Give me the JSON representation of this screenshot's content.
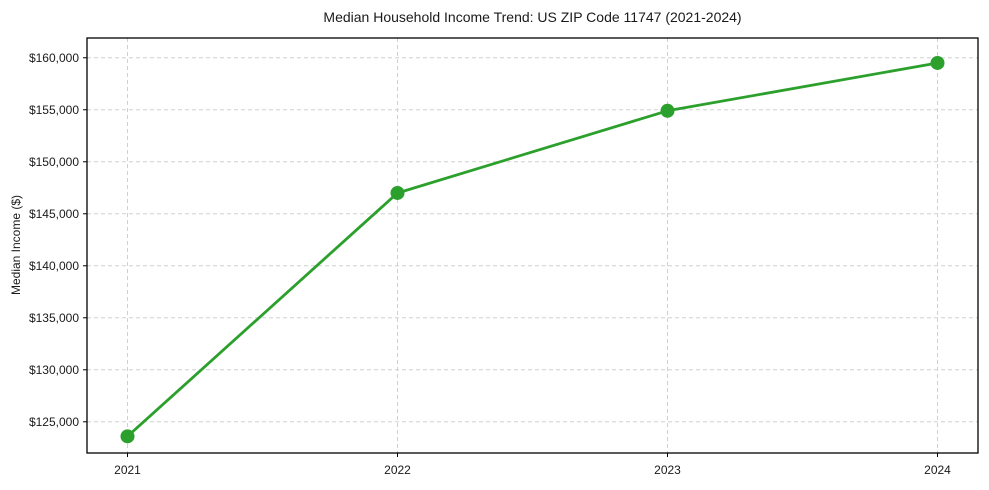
{
  "chart_data": {
    "type": "line",
    "title": "Median Household Income Trend: US ZIP Code 11747 (2021-2024)",
    "xlabel": "",
    "ylabel": "Median Income ($)",
    "x": [
      2021,
      2022,
      2023,
      2024
    ],
    "values": [
      123600,
      147000,
      154900,
      159500
    ],
    "xlim": [
      2020.85,
      2024.15
    ],
    "ylim": [
      122000,
      161900
    ],
    "xticks": [
      {
        "value": 2021,
        "label": "2021"
      },
      {
        "value": 2022,
        "label": "2022"
      },
      {
        "value": 2023,
        "label": "2023"
      },
      {
        "value": 2024,
        "label": "2024"
      }
    ],
    "yticks": [
      {
        "value": 125000,
        "label": "$125,000"
      },
      {
        "value": 130000,
        "label": "$130,000"
      },
      {
        "value": 135000,
        "label": "$135,000"
      },
      {
        "value": 140000,
        "label": "$140,000"
      },
      {
        "value": 145000,
        "label": "$145,000"
      },
      {
        "value": 150000,
        "label": "$150,000"
      },
      {
        "value": 155000,
        "label": "$155,000"
      },
      {
        "value": 160000,
        "label": "$160,000"
      }
    ],
    "grid": true,
    "grid_style": "dashed",
    "legend": "none",
    "marker": "circle",
    "line_color": "#2ca02c",
    "grid_color": "#d0d0d0",
    "axis_color": "#000000",
    "text_color": "#1a1a1a",
    "background": "#ffffff"
  }
}
